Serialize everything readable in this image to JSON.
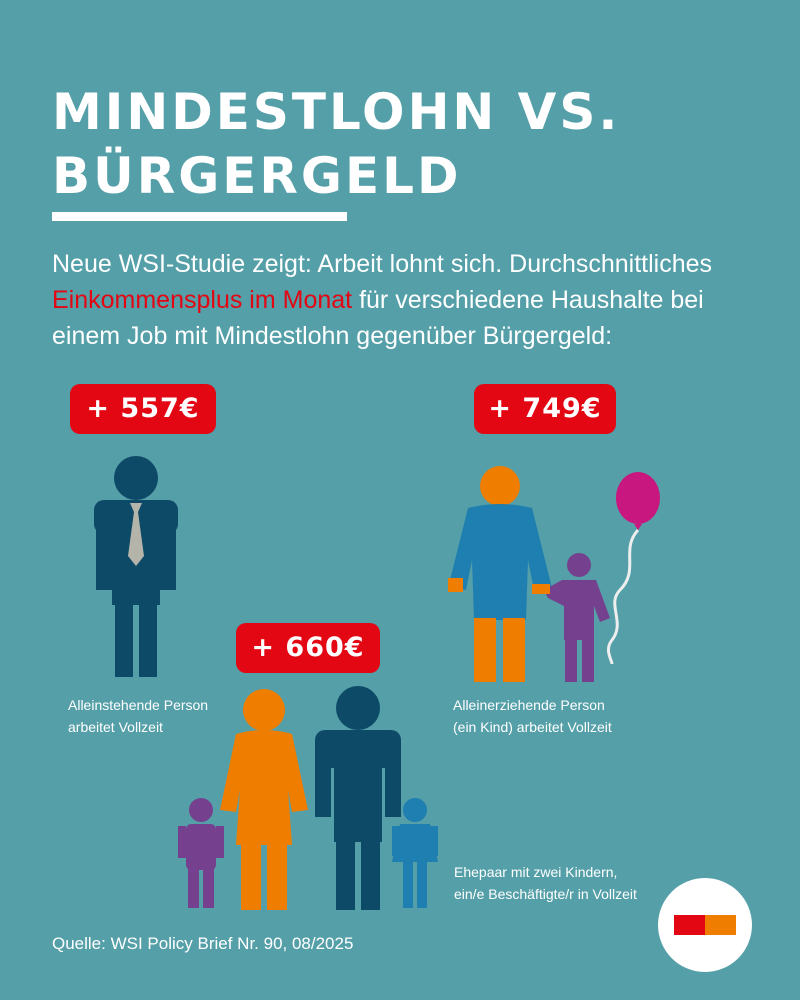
{
  "title": {
    "line1": "MINDESTLOHN VS.",
    "line2": "BÜRGERGELD"
  },
  "intro": {
    "part1": "Neue WSI-Studie zeigt: Arbeit lohnt sich. Durchschnittliches ",
    "highlight": "Einkommensplus im Monat",
    "part2": " für verschiedene Haushalte bei einem Job mit Mindestlohn gegenüber Bürgergeld:"
  },
  "households": {
    "single": {
      "amount": "+ 557€",
      "label_line1": "Alleinstehende Person",
      "label_line2": "arbeitet Vollzeit"
    },
    "single_parent": {
      "amount": "+ 749€",
      "label_line1": "Alleinerziehende Person",
      "label_line2": "(ein Kind) arbeitet Vollzeit"
    },
    "family": {
      "amount": "+ 660€",
      "label_line1": "Ehepaar mit zwei Kindern,",
      "label_line2": "ein/e Beschäftigte/r in Vollzeit"
    }
  },
  "source": "Quelle: WSI Policy Brief Nr. 90, 08/2025",
  "colors": {
    "background": "#549fa8",
    "accent_red": "#e30613",
    "orange": "#ef7d00",
    "navy": "#0d4a68",
    "blue": "#1f7fb0",
    "purple": "#75418f",
    "balloon": "#c8177e",
    "tie_grey": "#b4b4aa"
  },
  "icons": [
    "man-with-tie-icon",
    "mother-with-child-icon",
    "balloon-icon",
    "family-icon",
    "hbs-logo-icon"
  ]
}
